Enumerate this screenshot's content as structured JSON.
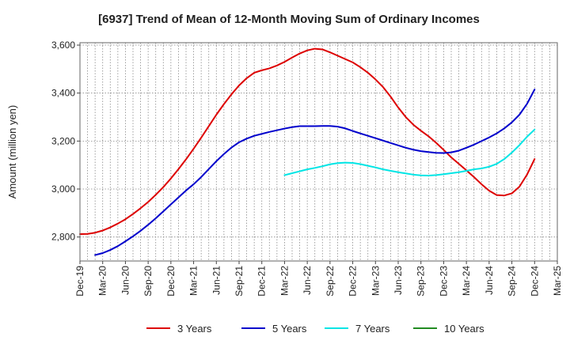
{
  "chart_data": {
    "type": "line",
    "title": "[6937]  Trend of Mean of 12-Month Moving Sum of Ordinary Incomes",
    "xlabel": "",
    "ylabel": "Amount (million yen)",
    "ylim": [
      2700,
      3610
    ],
    "yticks": [
      2800,
      3000,
      3200,
      3400,
      3600
    ],
    "ytick_labels": [
      "2,800",
      "3,000",
      "3,200",
      "3,400",
      "3,600"
    ],
    "xtick_labels": [
      "Dec-19",
      "Mar-20",
      "Jun-20",
      "Sep-20",
      "Dec-20",
      "Mar-21",
      "Jun-21",
      "Sep-21",
      "Dec-21",
      "Mar-22",
      "Jun-22",
      "Sep-22",
      "Dec-22",
      "Mar-23",
      "Jun-23",
      "Sep-23",
      "Dec-23",
      "Mar-24",
      "Jun-24",
      "Sep-24",
      "Dec-24",
      "Mar-25"
    ],
    "x_start_month": 0,
    "x_end_month": 63,
    "grid": true,
    "legend_position": "bottom",
    "series": [
      {
        "name": "3 Years",
        "color": "#dd0000",
        "x": [
          0,
          1,
          2,
          3,
          4,
          5,
          6,
          7,
          8,
          9,
          10,
          11,
          12,
          13,
          14,
          15,
          16,
          17,
          18,
          19,
          20,
          21,
          22,
          23,
          24,
          25,
          26,
          27,
          28,
          29,
          30,
          31,
          32,
          33,
          34,
          35,
          36,
          37,
          38,
          39,
          40,
          41,
          42,
          43,
          44,
          45,
          46,
          47,
          48,
          49,
          50,
          51,
          52,
          53,
          54,
          55,
          56,
          57,
          58,
          59,
          60
        ],
        "values": [
          2812,
          2813,
          2818,
          2827,
          2840,
          2856,
          2874,
          2896,
          2920,
          2946,
          2976,
          3008,
          3044,
          3083,
          3124,
          3168,
          3214,
          3262,
          3310,
          3354,
          3395,
          3432,
          3462,
          3485,
          3495,
          3503,
          3515,
          3530,
          3548,
          3565,
          3578,
          3585,
          3582,
          3570,
          3556,
          3542,
          3528,
          3508,
          3485,
          3457,
          3425,
          3385,
          3340,
          3300,
          3268,
          3243,
          3220,
          3193,
          3163,
          3132,
          3105,
          3078,
          3050,
          3020,
          2993,
          2975,
          2973,
          2982,
          3010,
          3060,
          3125
        ]
      },
      {
        "name": "5 Years",
        "color": "#0000cc",
        "x": [
          2,
          3,
          4,
          5,
          6,
          7,
          8,
          9,
          10,
          11,
          12,
          13,
          14,
          15,
          16,
          17,
          18,
          19,
          20,
          21,
          22,
          23,
          24,
          25,
          26,
          27,
          28,
          29,
          30,
          31,
          32,
          33,
          34,
          35,
          36,
          37,
          38,
          39,
          40,
          41,
          42,
          43,
          44,
          45,
          46,
          47,
          48,
          49,
          50,
          51,
          52,
          53,
          54,
          55,
          56,
          57,
          58,
          59,
          60
        ],
        "values": [
          2725,
          2733,
          2746,
          2762,
          2782,
          2803,
          2826,
          2851,
          2878,
          2907,
          2936,
          2965,
          2994,
          3020,
          3050,
          3083,
          3116,
          3146,
          3173,
          3195,
          3210,
          3222,
          3230,
          3238,
          3245,
          3252,
          3258,
          3262,
          3262,
          3262,
          3263,
          3263,
          3260,
          3253,
          3242,
          3232,
          3222,
          3212,
          3202,
          3192,
          3182,
          3172,
          3164,
          3158,
          3154,
          3151,
          3150,
          3153,
          3160,
          3172,
          3185,
          3200,
          3215,
          3232,
          3253,
          3278,
          3310,
          3355,
          3415
        ]
      },
      {
        "name": "7 Years",
        "color": "#00e5e5",
        "x": [
          27,
          28,
          29,
          30,
          31,
          32,
          33,
          34,
          35,
          36,
          37,
          38,
          39,
          40,
          41,
          42,
          43,
          44,
          45,
          46,
          47,
          48,
          49,
          50,
          51,
          52,
          53,
          54,
          55,
          56,
          57,
          58,
          59,
          60
        ],
        "values": [
          3058,
          3066,
          3074,
          3082,
          3088,
          3095,
          3103,
          3108,
          3110,
          3109,
          3104,
          3097,
          3090,
          3082,
          3076,
          3070,
          3065,
          3060,
          3057,
          3056,
          3058,
          3062,
          3066,
          3070,
          3076,
          3082,
          3086,
          3093,
          3105,
          3125,
          3152,
          3183,
          3218,
          3248
        ]
      },
      {
        "name": "10 Years",
        "color": "#228b22",
        "x": [],
        "values": []
      }
    ]
  }
}
